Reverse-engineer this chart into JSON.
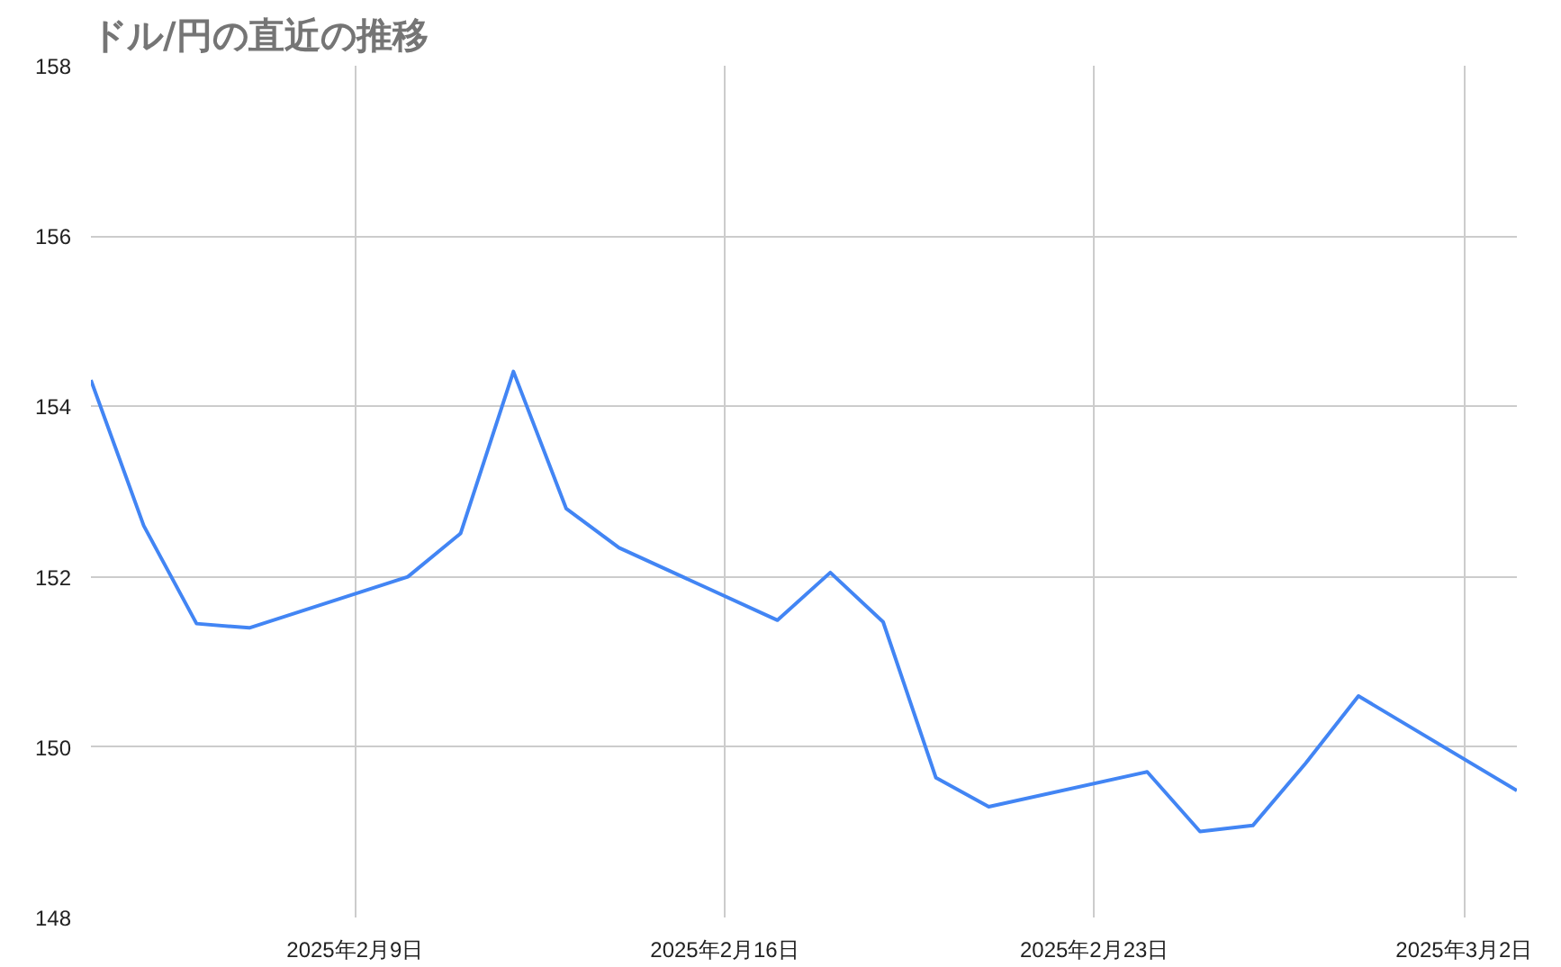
{
  "chart_data": {
    "type": "line",
    "title": "ドル/円の直近の推移",
    "x": [
      "2025-02-04",
      "2025-02-05",
      "2025-02-06",
      "2025-02-07",
      "2025-02-10",
      "2025-02-11",
      "2025-02-12",
      "2025-02-13",
      "2025-02-14",
      "2025-02-17",
      "2025-02-18",
      "2025-02-19",
      "2025-02-20",
      "2025-02-21",
      "2025-02-24",
      "2025-02-25",
      "2025-02-26",
      "2025-02-27",
      "2025-02-28",
      "2025-03-03"
    ],
    "series": [
      {
        "color": "#4285f4",
        "values": [
          154.31,
          152.6,
          151.45,
          151.4,
          152.0,
          152.51,
          154.41,
          152.8,
          152.34,
          151.49,
          152.05,
          151.47,
          149.64,
          149.3,
          149.71,
          149.01,
          149.08,
          149.81,
          150.6,
          149.49
        ]
      }
    ],
    "xlim": [
      "2025-02-04",
      "2025-03-03"
    ],
    "xticks": [
      {
        "value": "2025-02-09",
        "label": "2025年2月9日"
      },
      {
        "value": "2025-02-16",
        "label": "2025年2月16日"
      },
      {
        "value": "2025-02-23",
        "label": "2025年2月23日"
      },
      {
        "value": "2025-03-02",
        "label": "2025年3月2日"
      }
    ],
    "ylim": [
      148,
      158
    ],
    "yticks": [
      148,
      150,
      152,
      154,
      156,
      158
    ],
    "grid": true,
    "marker": "none",
    "line_style": "solid"
  }
}
